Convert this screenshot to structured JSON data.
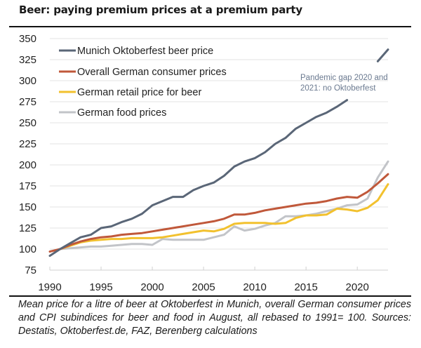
{
  "title": "Beer: paying premium prices at a premium party",
  "caption": "Mean price for a litre of beer at Oktoberfest in Munich, overall German consumer prices and CPI subindices for beer and food in August, all rebased to 1991= 100. Sources: Destatis, Oktoberfest.de, FAZ, Berenberg calculations",
  "chart_data": {
    "type": "line",
    "title": "Beer: paying premium prices at a premium party",
    "xlabel": "",
    "ylabel": "",
    "xlim": [
      1990,
      2023
    ],
    "ylim": [
      75,
      350
    ],
    "x_ticks": [
      1990,
      1995,
      2000,
      2005,
      2010,
      2015,
      2020
    ],
    "y_ticks": [
      75,
      100,
      125,
      150,
      175,
      200,
      225,
      250,
      275,
      300,
      325,
      350
    ],
    "grid": "horizontal",
    "legend": "top-left",
    "annotations": [
      {
        "text_lines": [
          "Pandemic gap 2020 and",
          "2021: no Oktoberfest"
        ],
        "near_x": 2019
      }
    ],
    "x": [
      1990,
      1991,
      1992,
      1993,
      1994,
      1995,
      1996,
      1997,
      1998,
      1999,
      2000,
      2001,
      2002,
      2003,
      2004,
      2005,
      2006,
      2007,
      2008,
      2009,
      2010,
      2011,
      2012,
      2013,
      2014,
      2015,
      2016,
      2017,
      2018,
      2019,
      2020,
      2021,
      2022,
      2023
    ],
    "series": [
      {
        "name": "Munich Oktoberfest beer price",
        "color": "#5a6677",
        "values": [
          92,
          100,
          107,
          114,
          117,
          125,
          127,
          132,
          136,
          142,
          152,
          157,
          162,
          162,
          170,
          175,
          179,
          187,
          198,
          204,
          208,
          215,
          225,
          232,
          243,
          250,
          257,
          262,
          269,
          277,
          null,
          null,
          323,
          337
        ]
      },
      {
        "name": "Overall German consumer prices",
        "color": "#c0583a",
        "values": [
          97,
          100,
          105,
          109,
          112,
          114,
          115,
          117,
          118,
          119,
          121,
          123,
          125,
          127,
          129,
          131,
          133,
          136,
          141,
          141,
          143,
          146,
          148,
          150,
          152,
          154,
          155,
          157,
          160,
          162,
          161,
          168,
          178,
          189
        ]
      },
      {
        "name": "German retail price for beer",
        "color": "#f2c12e",
        "values": [
          null,
          100,
          104,
          108,
          110,
          111,
          112,
          112,
          113,
          113,
          113,
          114,
          116,
          118,
          120,
          122,
          121,
          124,
          130,
          131,
          131,
          131,
          130,
          131,
          137,
          140,
          140,
          141,
          148,
          147,
          145,
          149,
          158,
          177
        ]
      },
      {
        "name": "German food prices",
        "color": "#c2c4c8",
        "values": [
          null,
          100,
          101,
          102,
          103,
          103,
          104,
          105,
          106,
          106,
          105,
          112,
          111,
          111,
          111,
          111,
          114,
          117,
          127,
          122,
          124,
          128,
          131,
          139,
          139,
          140,
          142,
          145,
          148,
          152,
          153,
          160,
          185,
          204
        ]
      }
    ]
  }
}
